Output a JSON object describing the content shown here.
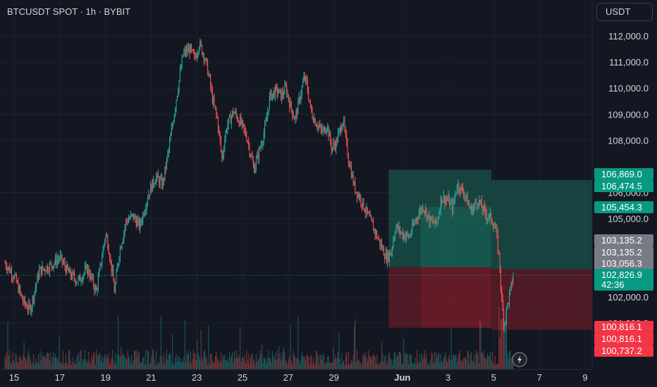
{
  "header": {
    "title": "BTCUSDT SPOT · 1h · BYBIT"
  },
  "currency_button": {
    "label": "USDT"
  },
  "lightning_icon": "lightning-icon",
  "colors": {
    "background": "#131722",
    "up": "#26a69a",
    "down": "#ef5350",
    "grid": "#1e222d",
    "axis_text": "#d1d4dc",
    "target_zone": "#1b7a63",
    "stop_zone": "#7e1e2a"
  },
  "chart_data": {
    "type": "candlestick",
    "symbol": "BTCUSDT",
    "exchange": "BYBIT",
    "timeframe": "1h",
    "ylim": [
      100300,
      112500
    ],
    "grid": true,
    "y_ticks": [
      {
        "value": 112000,
        "label": "112,000.0"
      },
      {
        "value": 111000,
        "label": "111,000.0"
      },
      {
        "value": 110000,
        "label": "110,000.0"
      },
      {
        "value": 109000,
        "label": "109,000.0"
      },
      {
        "value": 108000,
        "label": "108,000.0"
      },
      {
        "value": 106000,
        "label": "106,000.0"
      },
      {
        "value": 105000,
        "label": "105,000.0"
      },
      {
        "value": 102000,
        "label": "102,000.0"
      },
      {
        "value": 101000,
        "label": "101,000.0"
      }
    ],
    "x_ticks": [
      {
        "day": 15,
        "label": "15"
      },
      {
        "day": 17,
        "label": "17"
      },
      {
        "day": 19,
        "label": "19"
      },
      {
        "day": 21,
        "label": "21"
      },
      {
        "day": 23,
        "label": "23"
      },
      {
        "day": 25,
        "label": "25"
      },
      {
        "day": 27,
        "label": "27"
      },
      {
        "day": 29,
        "label": "29"
      },
      {
        "day": 32,
        "label": "Jun",
        "bold": true
      },
      {
        "day": 34,
        "label": "3"
      },
      {
        "day": 36,
        "label": "5"
      },
      {
        "day": 38,
        "label": "7"
      },
      {
        "day": 40,
        "label": "9"
      }
    ],
    "price_path": [
      [
        14.6,
        103300
      ],
      [
        15.0,
        102800
      ],
      [
        15.4,
        101800
      ],
      [
        15.7,
        101500
      ],
      [
        16.1,
        103000
      ],
      [
        16.6,
        103200
      ],
      [
        17.0,
        103500
      ],
      [
        17.4,
        102900
      ],
      [
        17.8,
        102600
      ],
      [
        18.2,
        103100
      ],
      [
        18.6,
        102200
      ],
      [
        18.8,
        103300
      ],
      [
        19.0,
        104400
      ],
      [
        19.1,
        104100
      ],
      [
        19.3,
        102900
      ],
      [
        19.4,
        102200
      ],
      [
        19.6,
        103700
      ],
      [
        19.9,
        104900
      ],
      [
        20.2,
        105100
      ],
      [
        20.5,
        104700
      ],
      [
        20.9,
        106000
      ],
      [
        21.2,
        106600
      ],
      [
        21.5,
        106300
      ],
      [
        21.8,
        107800
      ],
      [
        22.1,
        109600
      ],
      [
        22.4,
        111300
      ],
      [
        22.7,
        111500
      ],
      [
        22.9,
        111100
      ],
      [
        23.1,
        111700
      ],
      [
        23.3,
        111300
      ],
      [
        23.5,
        110600
      ],
      [
        23.7,
        109500
      ],
      [
        23.9,
        108800
      ],
      [
        24.1,
        107300
      ],
      [
        24.3,
        108500
      ],
      [
        24.6,
        109100
      ],
      [
        24.9,
        108700
      ],
      [
        25.2,
        108100
      ],
      [
        25.5,
        106900
      ],
      [
        25.8,
        107800
      ],
      [
        26.0,
        108500
      ],
      [
        26.2,
        109700
      ],
      [
        26.5,
        109900
      ],
      [
        26.7,
        109700
      ],
      [
        26.9,
        110000
      ],
      [
        27.1,
        109300
      ],
      [
        27.3,
        108800
      ],
      [
        27.5,
        109600
      ],
      [
        27.7,
        110400
      ],
      [
        27.8,
        110200
      ],
      [
        28.0,
        109100
      ],
      [
        28.2,
        108700
      ],
      [
        28.5,
        108300
      ],
      [
        28.7,
        108600
      ],
      [
        28.9,
        107700
      ],
      [
        29.1,
        107900
      ],
      [
        29.4,
        108800
      ],
      [
        29.6,
        107500
      ],
      [
        29.9,
        106200
      ],
      [
        30.2,
        105700
      ],
      [
        30.5,
        105100
      ],
      [
        30.8,
        104500
      ],
      [
        31.1,
        103900
      ],
      [
        31.3,
        103500
      ],
      [
        31.5,
        103700
      ],
      [
        31.7,
        104700
      ],
      [
        32.0,
        104400
      ],
      [
        32.3,
        104300
      ],
      [
        32.6,
        105000
      ],
      [
        32.9,
        105500
      ],
      [
        33.2,
        104900
      ],
      [
        33.5,
        104800
      ],
      [
        33.7,
        105800
      ],
      [
        34.0,
        105700
      ],
      [
        34.2,
        105400
      ],
      [
        34.4,
        106300
      ],
      [
        34.7,
        106000
      ],
      [
        35.0,
        105300
      ],
      [
        35.3,
        105700
      ],
      [
        35.5,
        105400
      ],
      [
        35.7,
        105100
      ],
      [
        35.9,
        105000
      ],
      [
        36.1,
        104500
      ],
      [
        36.25,
        103400
      ],
      [
        36.35,
        101800
      ],
      [
        36.45,
        100900
      ],
      [
        36.6,
        101700
      ],
      [
        36.75,
        102300
      ],
      [
        36.85,
        102827
      ]
    ],
    "volume_seed": 7,
    "positions": [
      {
        "name": "position-1",
        "start_day": 31.4,
        "end_day": 35.9,
        "entry": 103135.2,
        "target": 106869.0,
        "stop": 100816.1,
        "entry_shade_start_day": 32.8
      },
      {
        "name": "position-2",
        "start_day": 35.9,
        "end_day": 40.3,
        "entry": 103056.3,
        "target": 106474.5,
        "stop": 100737.2
      }
    ],
    "last_price": 102826.9,
    "countdown": "42:36",
    "price_tags": [
      {
        "value": 106869.0,
        "label": "106,869.0",
        "color": "#089981"
      },
      {
        "value": 106474.5,
        "label": "106,474.5",
        "color": "#089981"
      },
      {
        "value": 105454.3,
        "label": "105,454.3",
        "color": "#089981"
      },
      {
        "value": 103135.2,
        "label": "103,135.2",
        "color": "#787b86"
      },
      {
        "value": 103135.2,
        "label": "103,135.2",
        "color": "#787b86"
      },
      {
        "value": 103056.3,
        "label": "103,056.3",
        "color": "#787b86"
      },
      {
        "value": 102826.9,
        "label": "102,826.9",
        "color": "#089981"
      },
      {
        "value": 100816.1,
        "label": "100,816.1",
        "color": "#f23645"
      },
      {
        "value": 100816.1,
        "label": "100,816.1",
        "color": "#f23645"
      },
      {
        "value": 100737.2,
        "label": "100,737.2",
        "color": "#f23645"
      }
    ]
  }
}
